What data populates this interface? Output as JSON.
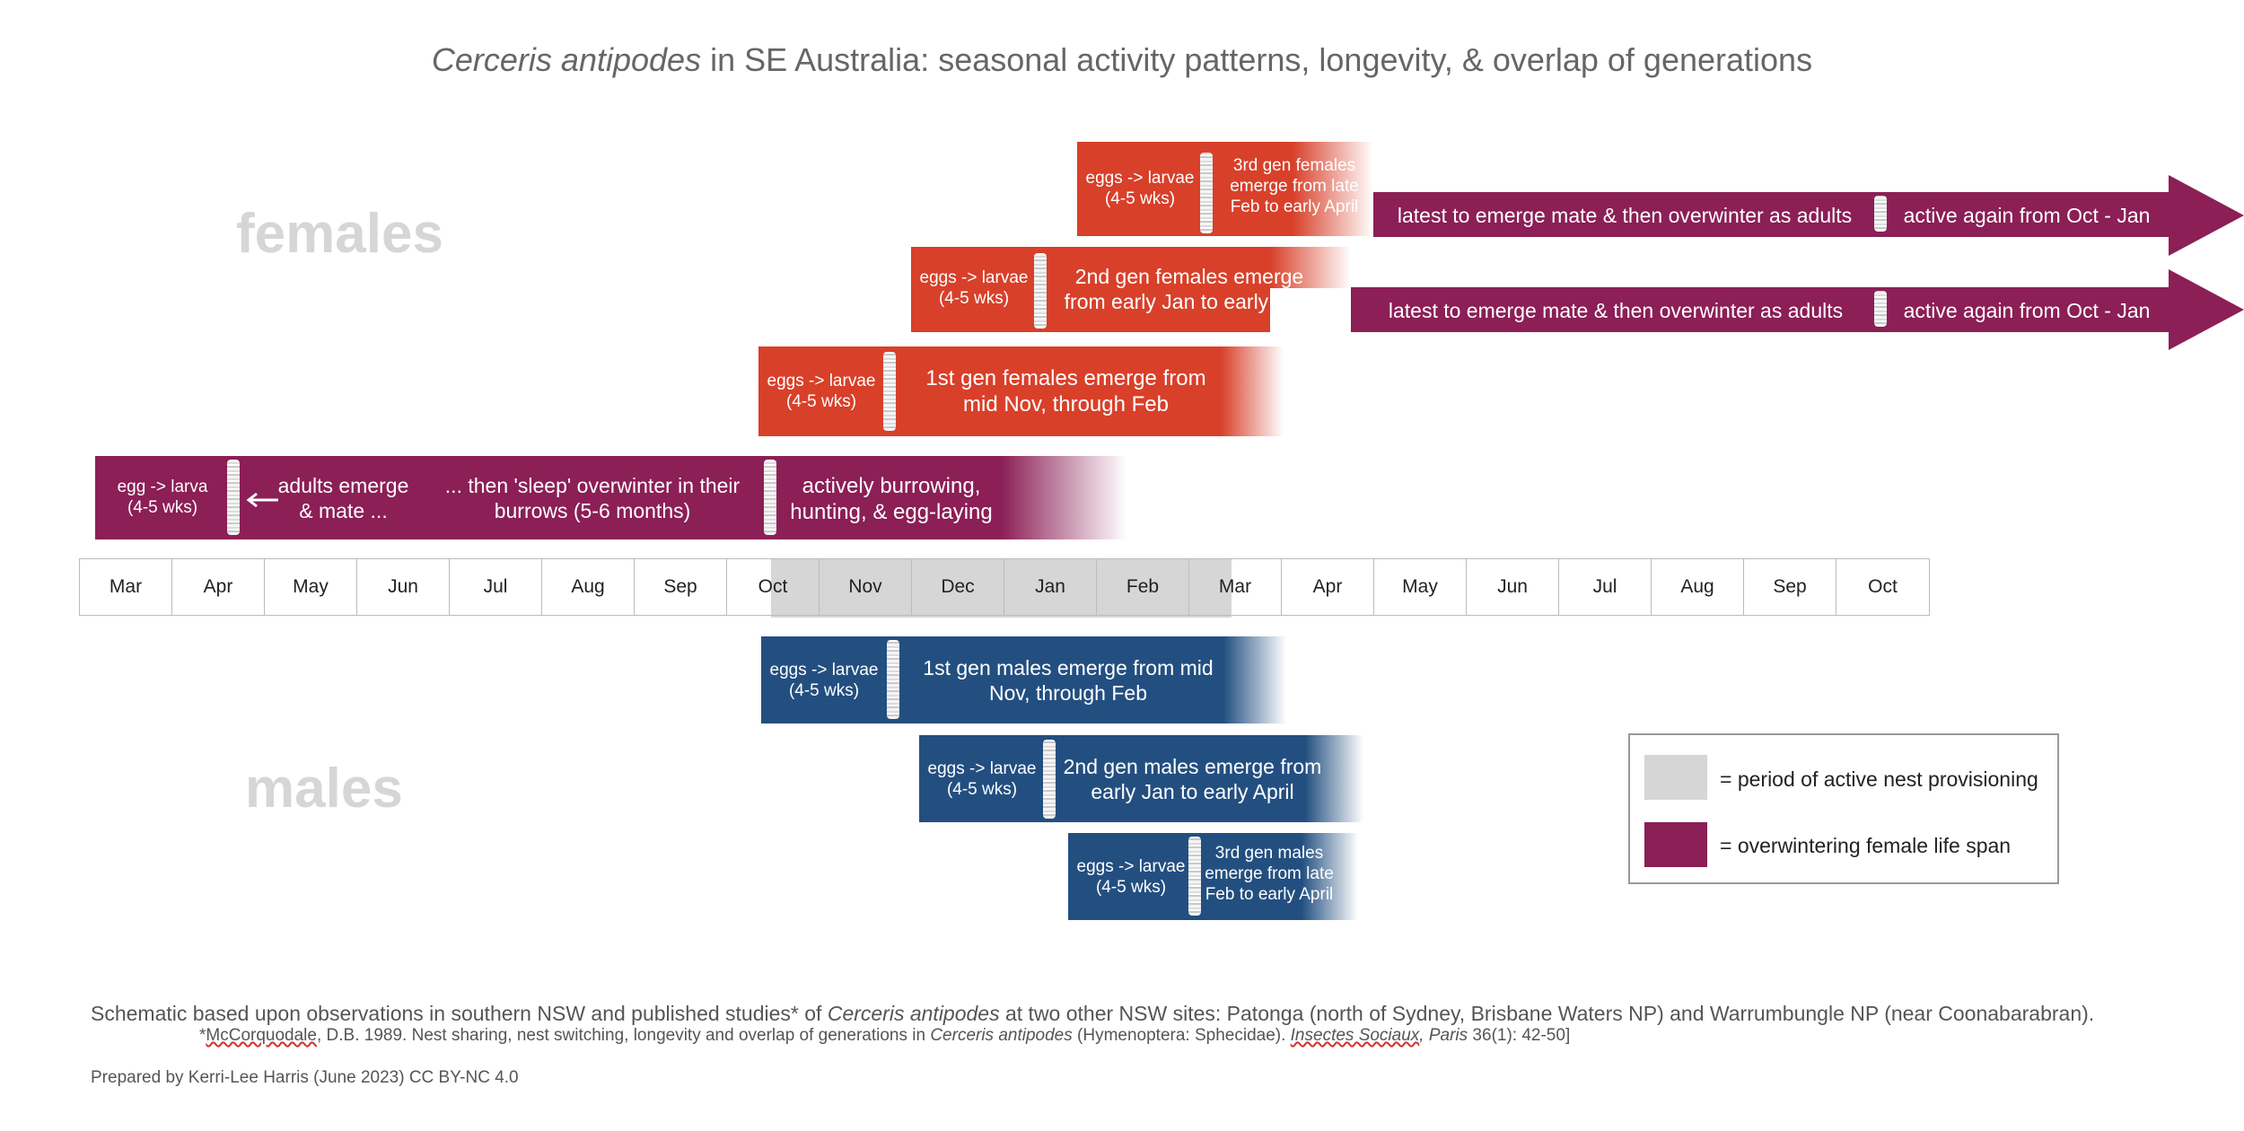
{
  "title": {
    "species": "Cerceris antipodes",
    "rest": " in SE Australia: seasonal activity patterns, longevity, & overlap of generations"
  },
  "labels": {
    "females": "females",
    "males": "males"
  },
  "timeline": {
    "months": [
      "Mar",
      "Apr",
      "May",
      "Jun",
      "Jul",
      "Aug",
      "Sep",
      "Oct",
      "Nov",
      "Dec",
      "Jan",
      "Feb",
      "Mar",
      "Apr",
      "May",
      "Jun",
      "Jul",
      "Aug",
      "Sep",
      "Oct"
    ],
    "provisioning_period": "mid Oct to mid Mar"
  },
  "females": {
    "overwinter": {
      "egg": "egg -> larva",
      "egg_dur": "(4-5 wks)",
      "emerge1": "adults emerge",
      "emerge2": "& mate ...",
      "sleep1": "... then 'sleep' overwinter in their",
      "sleep2": "burrows  (5-6 months)",
      "active1": "actively burrowing,",
      "active2": "hunting, & egg-laying"
    },
    "gen1": {
      "egg": "eggs -> larvae",
      "egg_dur": "(4-5 wks)",
      "line1": "1st gen females emerge from",
      "line2": "mid Nov, through Feb"
    },
    "gen2": {
      "egg": "eggs -> larvae",
      "egg_dur": "(4-5 wks)",
      "line1": "2nd gen females emerge",
      "line2": "from early Jan to early April",
      "tail": "latest to emerge mate & then overwinter as adults",
      "again": "active again from Oct - Jan"
    },
    "gen3": {
      "egg": "eggs -> larvae",
      "egg_dur": "(4-5 wks)",
      "line1": "3rd gen females",
      "line2": "emerge from late",
      "line3": "Feb to early April",
      "tail": "latest to emerge mate & then overwinter as adults",
      "again": "active again from Oct - Jan"
    }
  },
  "males": {
    "gen1": {
      "egg": "eggs -> larvae",
      "egg_dur": "(4-5 wks)",
      "line1": "1st gen males emerge from mid",
      "line2": "Nov, through Feb"
    },
    "gen2": {
      "egg": "eggs -> larvae",
      "egg_dur": "(4-5 wks)",
      "line1": "2nd gen males emerge from",
      "line2": "early Jan to early April"
    },
    "gen3": {
      "egg": "eggs -> larvae",
      "egg_dur": "(4-5 wks)",
      "line1": "3rd gen males",
      "line2": "emerge from late",
      "line3": "Feb to early April"
    }
  },
  "legend": {
    "provisioning": "= period of active nest provisioning",
    "overwintering": "= overwintering female life span"
  },
  "colors": {
    "female": "#d8402a",
    "overwinter": "#8b1f56",
    "male": "#234f80",
    "provisioning": "#d6d6d6"
  },
  "notes": {
    "schematic_a": "Schematic based upon observations in southern NSW and published studies* of ",
    "schematic_species": "Cerceris antipodes",
    "schematic_b": " at two other NSW sites: Patonga (north of  Sydney, Brisbane Waters NP) and Warrumbungle NP (near Coonabarabran).",
    "cite_author": "McCorquodale",
    "cite_a": ", D.B. 1989. Nest sharing, nest switching, longevity and overlap of generations in ",
    "cite_species": "Cerceris antipodes",
    "cite_b": " (Hymenoptera: Sphecidae). ",
    "cite_journal1": "Insectes Sociaux",
    "cite_journal2": ", Paris",
    "cite_c": " 36(1): 42-50]",
    "prepared": "Prepared by Kerri-Lee Harris (June 2023) CC BY-NC 4.0"
  }
}
